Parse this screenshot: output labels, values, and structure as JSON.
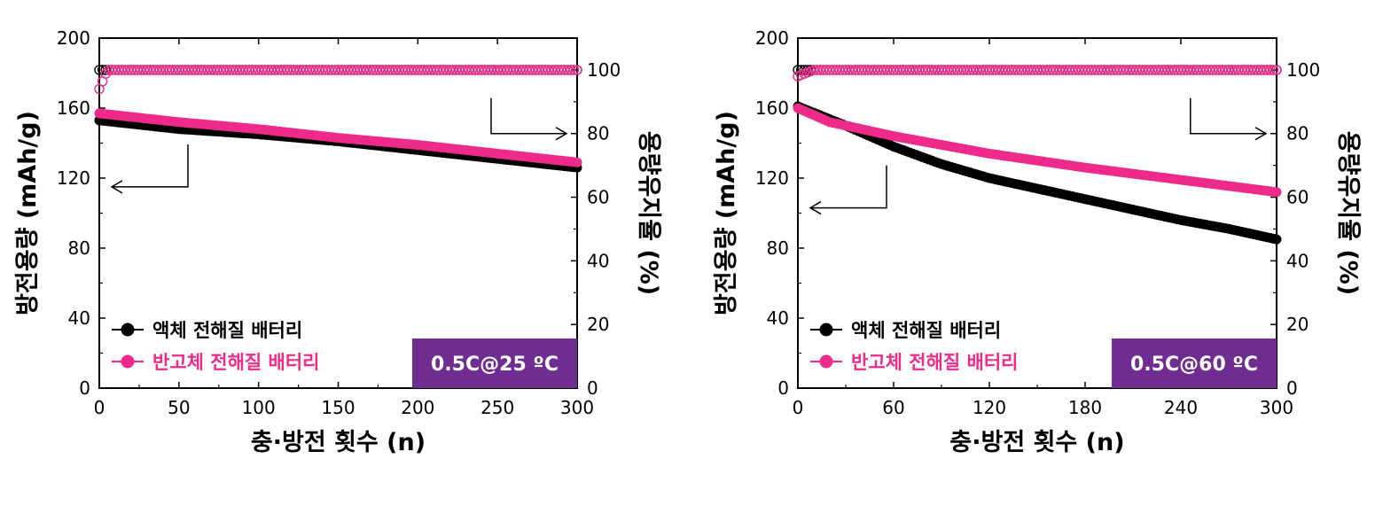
{
  "chart_data": [
    {
      "type": "scatter",
      "xlabel": "충·방전 횟수 (n)",
      "ylabel": "방전용량 (mAh/g)",
      "y2label": "용량유지율 (%)",
      "xlim": [
        0,
        300
      ],
      "ylim": [
        0,
        200
      ],
      "y2lim": [
        0,
        110
      ],
      "xticks": [
        0,
        50,
        100,
        150,
        200,
        250,
        300
      ],
      "yticks": [
        0,
        40,
        80,
        120,
        160,
        200
      ],
      "y2ticks": [
        0,
        20,
        40,
        60,
        80,
        100
      ],
      "badge": "0.5C@25 ºC",
      "legend_placement": "bottom-left",
      "series": [
        {
          "name": "액체 전해질 배터리",
          "color": "#000000",
          "capacity": {
            "x": [
              0,
              50,
              100,
              150,
              200,
              250,
              300
            ],
            "y": [
              153,
              148,
              145,
              141,
              136,
              131,
              126
            ]
          },
          "retention": {
            "x": [
              0,
              50,
              100,
              150,
              200,
              250,
              300
            ],
            "y": [
              100,
              100,
              100,
              100,
              100,
              100,
              100
            ]
          }
        },
        {
          "name": "반고체 전해질 배터리",
          "color": "#ee2a8a",
          "capacity": {
            "x": [
              0,
              50,
              100,
              150,
              200,
              250,
              300
            ],
            "y": [
              157,
              152,
              148,
              143,
              139,
              134,
              129
            ]
          },
          "retention": {
            "x": [
              0,
              5,
              50,
              100,
              150,
              200,
              250,
              300
            ],
            "y": [
              94,
              100,
              100,
              100,
              100,
              100,
              100,
              100
            ]
          }
        }
      ]
    },
    {
      "type": "scatter",
      "xlabel": "충·방전 횟수 (n)",
      "ylabel": "방전용량 (mAh/g)",
      "y2label": "용량유지율 (%)",
      "xlim": [
        0,
        300
      ],
      "ylim": [
        0,
        200
      ],
      "y2lim": [
        0,
        110
      ],
      "xticks": [
        0,
        60,
        120,
        180,
        240,
        300
      ],
      "yticks": [
        0,
        40,
        80,
        120,
        160,
        200
      ],
      "y2ticks": [
        0,
        20,
        40,
        60,
        80,
        100
      ],
      "badge": "0.5C@60 ºC",
      "legend_placement": "bottom-left",
      "series": [
        {
          "name": "액체 전해질 배터리",
          "color": "#000000",
          "capacity": {
            "x": [
              0,
              30,
              60,
              90,
              120,
              150,
              180,
              210,
              240,
              270,
              300
            ],
            "y": [
              161,
              150,
              138,
              128,
              120,
              114,
              108,
              102,
              96,
              91,
              85
            ]
          },
          "retention": {
            "x": [
              0,
              50,
              100,
              150,
              200,
              250,
              300
            ],
            "y": [
              100,
              100,
              100,
              100,
              100,
              100,
              100
            ]
          }
        },
        {
          "name": "반고체 전해질 배터리",
          "color": "#ee2a8a",
          "capacity": {
            "x": [
              0,
              20,
              60,
              120,
              180,
              240,
              300
            ],
            "y": [
              160,
              152,
              144,
              134,
              126,
              119,
              112
            ]
          },
          "retention": {
            "x": [
              0,
              10,
              50,
              100,
              150,
              200,
              250,
              300
            ],
            "y": [
              98,
              100,
              100,
              100,
              100,
              100,
              100,
              100
            ]
          }
        }
      ]
    }
  ]
}
